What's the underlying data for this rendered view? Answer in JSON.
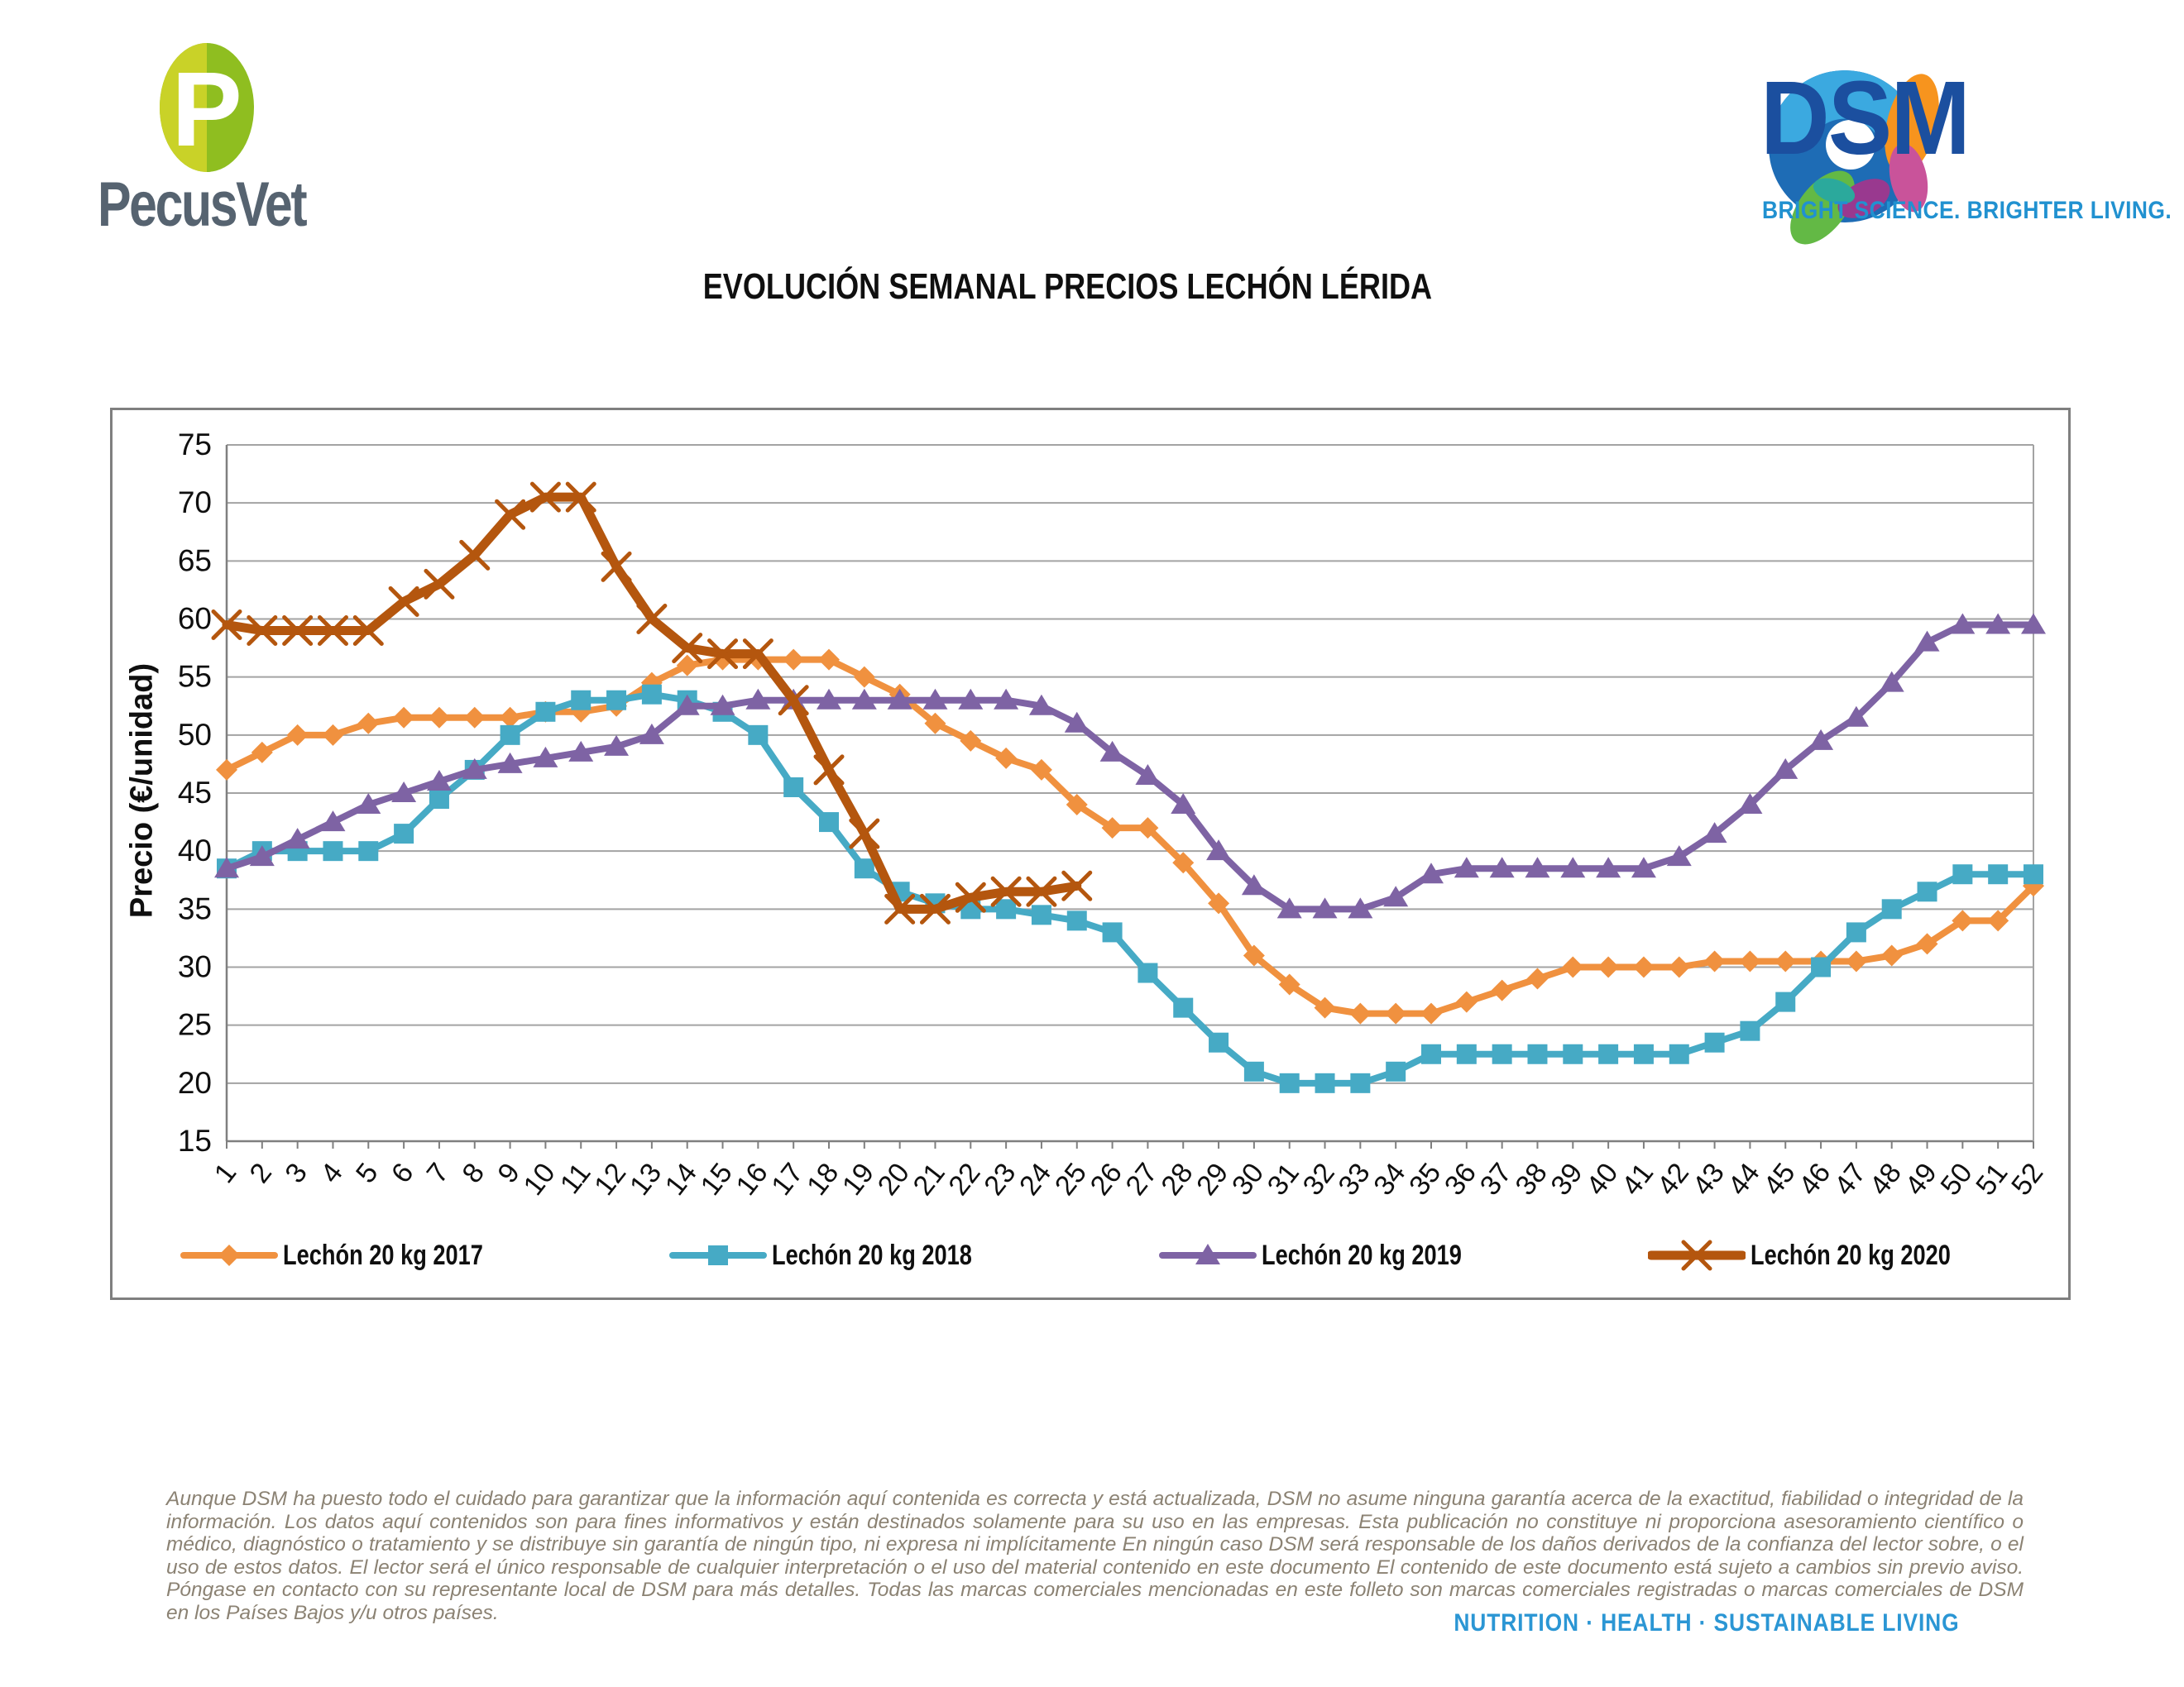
{
  "header": {
    "pecusvet": {
      "wordmark": "PecusVet",
      "p_letter": "P",
      "leaf_left_color": "#C9D228",
      "leaf_right_color": "#8FBE20",
      "wordmark_color": "#566370"
    },
    "dsm": {
      "name": "DSM",
      "tagline": "BRIGHT SCIENCE. BRIGHTER LIVING.",
      "name_color": "#1B4F9F",
      "tagline_color": "#2191D0"
    }
  },
  "chart_data": {
    "type": "line",
    "title": "EVOLUCIÓN SEMANAL PRECIOS LECHÓN LÉRIDA",
    "xlabel": "",
    "ylabel": "Precio (€/unidad)",
    "ylim": [
      15,
      75
    ],
    "ytick_step": 5,
    "grid": true,
    "legend_position": "bottom",
    "x": [
      "1",
      "2",
      "3",
      "4",
      "5",
      "6",
      "7",
      "8",
      "9",
      "10",
      "11",
      "12",
      "13",
      "14",
      "15",
      "16",
      "17",
      "18",
      "19",
      "20",
      "21",
      "22",
      "23",
      "24",
      "25",
      "26",
      "27",
      "28",
      "29",
      "30",
      "31",
      "32",
      "33",
      "34",
      "35",
      "36",
      "37",
      "38",
      "39",
      "40",
      "41",
      "42",
      "43",
      "44",
      "45",
      "46",
      "47",
      "48",
      "49",
      "50",
      "51",
      "52"
    ],
    "series": [
      {
        "name": "Lechón 20 kg 2017",
        "color": "#F0913F",
        "marker": "diamond",
        "line_width": 8,
        "values": [
          47,
          48.5,
          50,
          50,
          51,
          51.5,
          51.5,
          51.5,
          51.5,
          52,
          52,
          52.5,
          54.5,
          56,
          56.5,
          56.5,
          56.5,
          56.5,
          55,
          53.5,
          51,
          49.5,
          48,
          47,
          44,
          42,
          42,
          39,
          35.5,
          31,
          28.5,
          26.5,
          26,
          26,
          26,
          27,
          28,
          29,
          30,
          30,
          30,
          30,
          30.5,
          30.5,
          30.5,
          30.5,
          30.5,
          31,
          32,
          34,
          34,
          37
        ]
      },
      {
        "name": "Lechón 20 kg 2018",
        "color": "#46AAC5",
        "marker": "square",
        "line_width": 8,
        "values": [
          38.5,
          40,
          40,
          40,
          40,
          41.5,
          44.5,
          47,
          50,
          52,
          53,
          53,
          53.5,
          53,
          52,
          50,
          45.5,
          42.5,
          38.5,
          36.5,
          35.5,
          35,
          35,
          34.5,
          34,
          33,
          29.5,
          26.5,
          23.5,
          21,
          20,
          20,
          20,
          21,
          22.5,
          22.5,
          22.5,
          22.5,
          22.5,
          22.5,
          22.5,
          22.5,
          23.5,
          24.5,
          27,
          30,
          33,
          35,
          36.5,
          38,
          38,
          38
        ]
      },
      {
        "name": "Lechón 20 kg 2019",
        "color": "#7E63A4",
        "marker": "triangle",
        "line_width": 8,
        "values": [
          38.5,
          39.5,
          41,
          42.5,
          44,
          45,
          46,
          47,
          47.5,
          48,
          48.5,
          49,
          50,
          52.5,
          52.5,
          53,
          53,
          53,
          53,
          53,
          53,
          53,
          53,
          52.5,
          51,
          48.5,
          46.5,
          44,
          40,
          37,
          35,
          35,
          35,
          36,
          38,
          38.5,
          38.5,
          38.5,
          38.5,
          38.5,
          38.5,
          39.5,
          41.5,
          44,
          47,
          49.5,
          51.5,
          54.5,
          58,
          59.5,
          59.5,
          59.5
        ]
      },
      {
        "name": "Lechón 20 kg 2020",
        "color": "#B4560E",
        "marker": "x",
        "line_width": 11,
        "values": [
          59.5,
          59,
          59,
          59,
          59,
          61.5,
          63,
          65.5,
          69,
          70.5,
          70.5,
          64.5,
          60,
          57.5,
          57,
          57,
          53,
          47,
          41.5,
          35,
          35,
          36,
          36.5,
          36.5,
          37
        ]
      }
    ]
  },
  "footer": {
    "disclaimer": "Aunque DSM ha puesto todo el cuidado para garantizar que la información aquí contenida es correcta y está actualizada, DSM no asume ninguna garantía acerca de la exactitud, fiabilidad o integridad de la información. Los datos aquí contenidos son para fines informativos y están destinados solamente para su uso en las empresas. Esta publicación no constituye ni proporciona asesoramiento científico o médico, diagnóstico o tratamiento y se distribuye sin garantía de ningún tipo, ni expresa ni implícitamente En ningún caso DSM será responsable de los daños derivados de la confianza del lector sobre, o el uso de estos datos. El lector será el único responsable de cualquier interpretación o el uso del material contenido en este documento El contenido de este documento está sujeto a cambios sin previo aviso. Póngase en contacto con su representante local de DSM para más detalles. Todas las marcas comerciales mencionadas en este folleto son marcas comerciales registradas o marcas comerciales de DSM en los Países Bajos y/u otros países.",
    "tagline": "NUTRITION · HEALTH · SUSTAINABLE LIVING"
  }
}
